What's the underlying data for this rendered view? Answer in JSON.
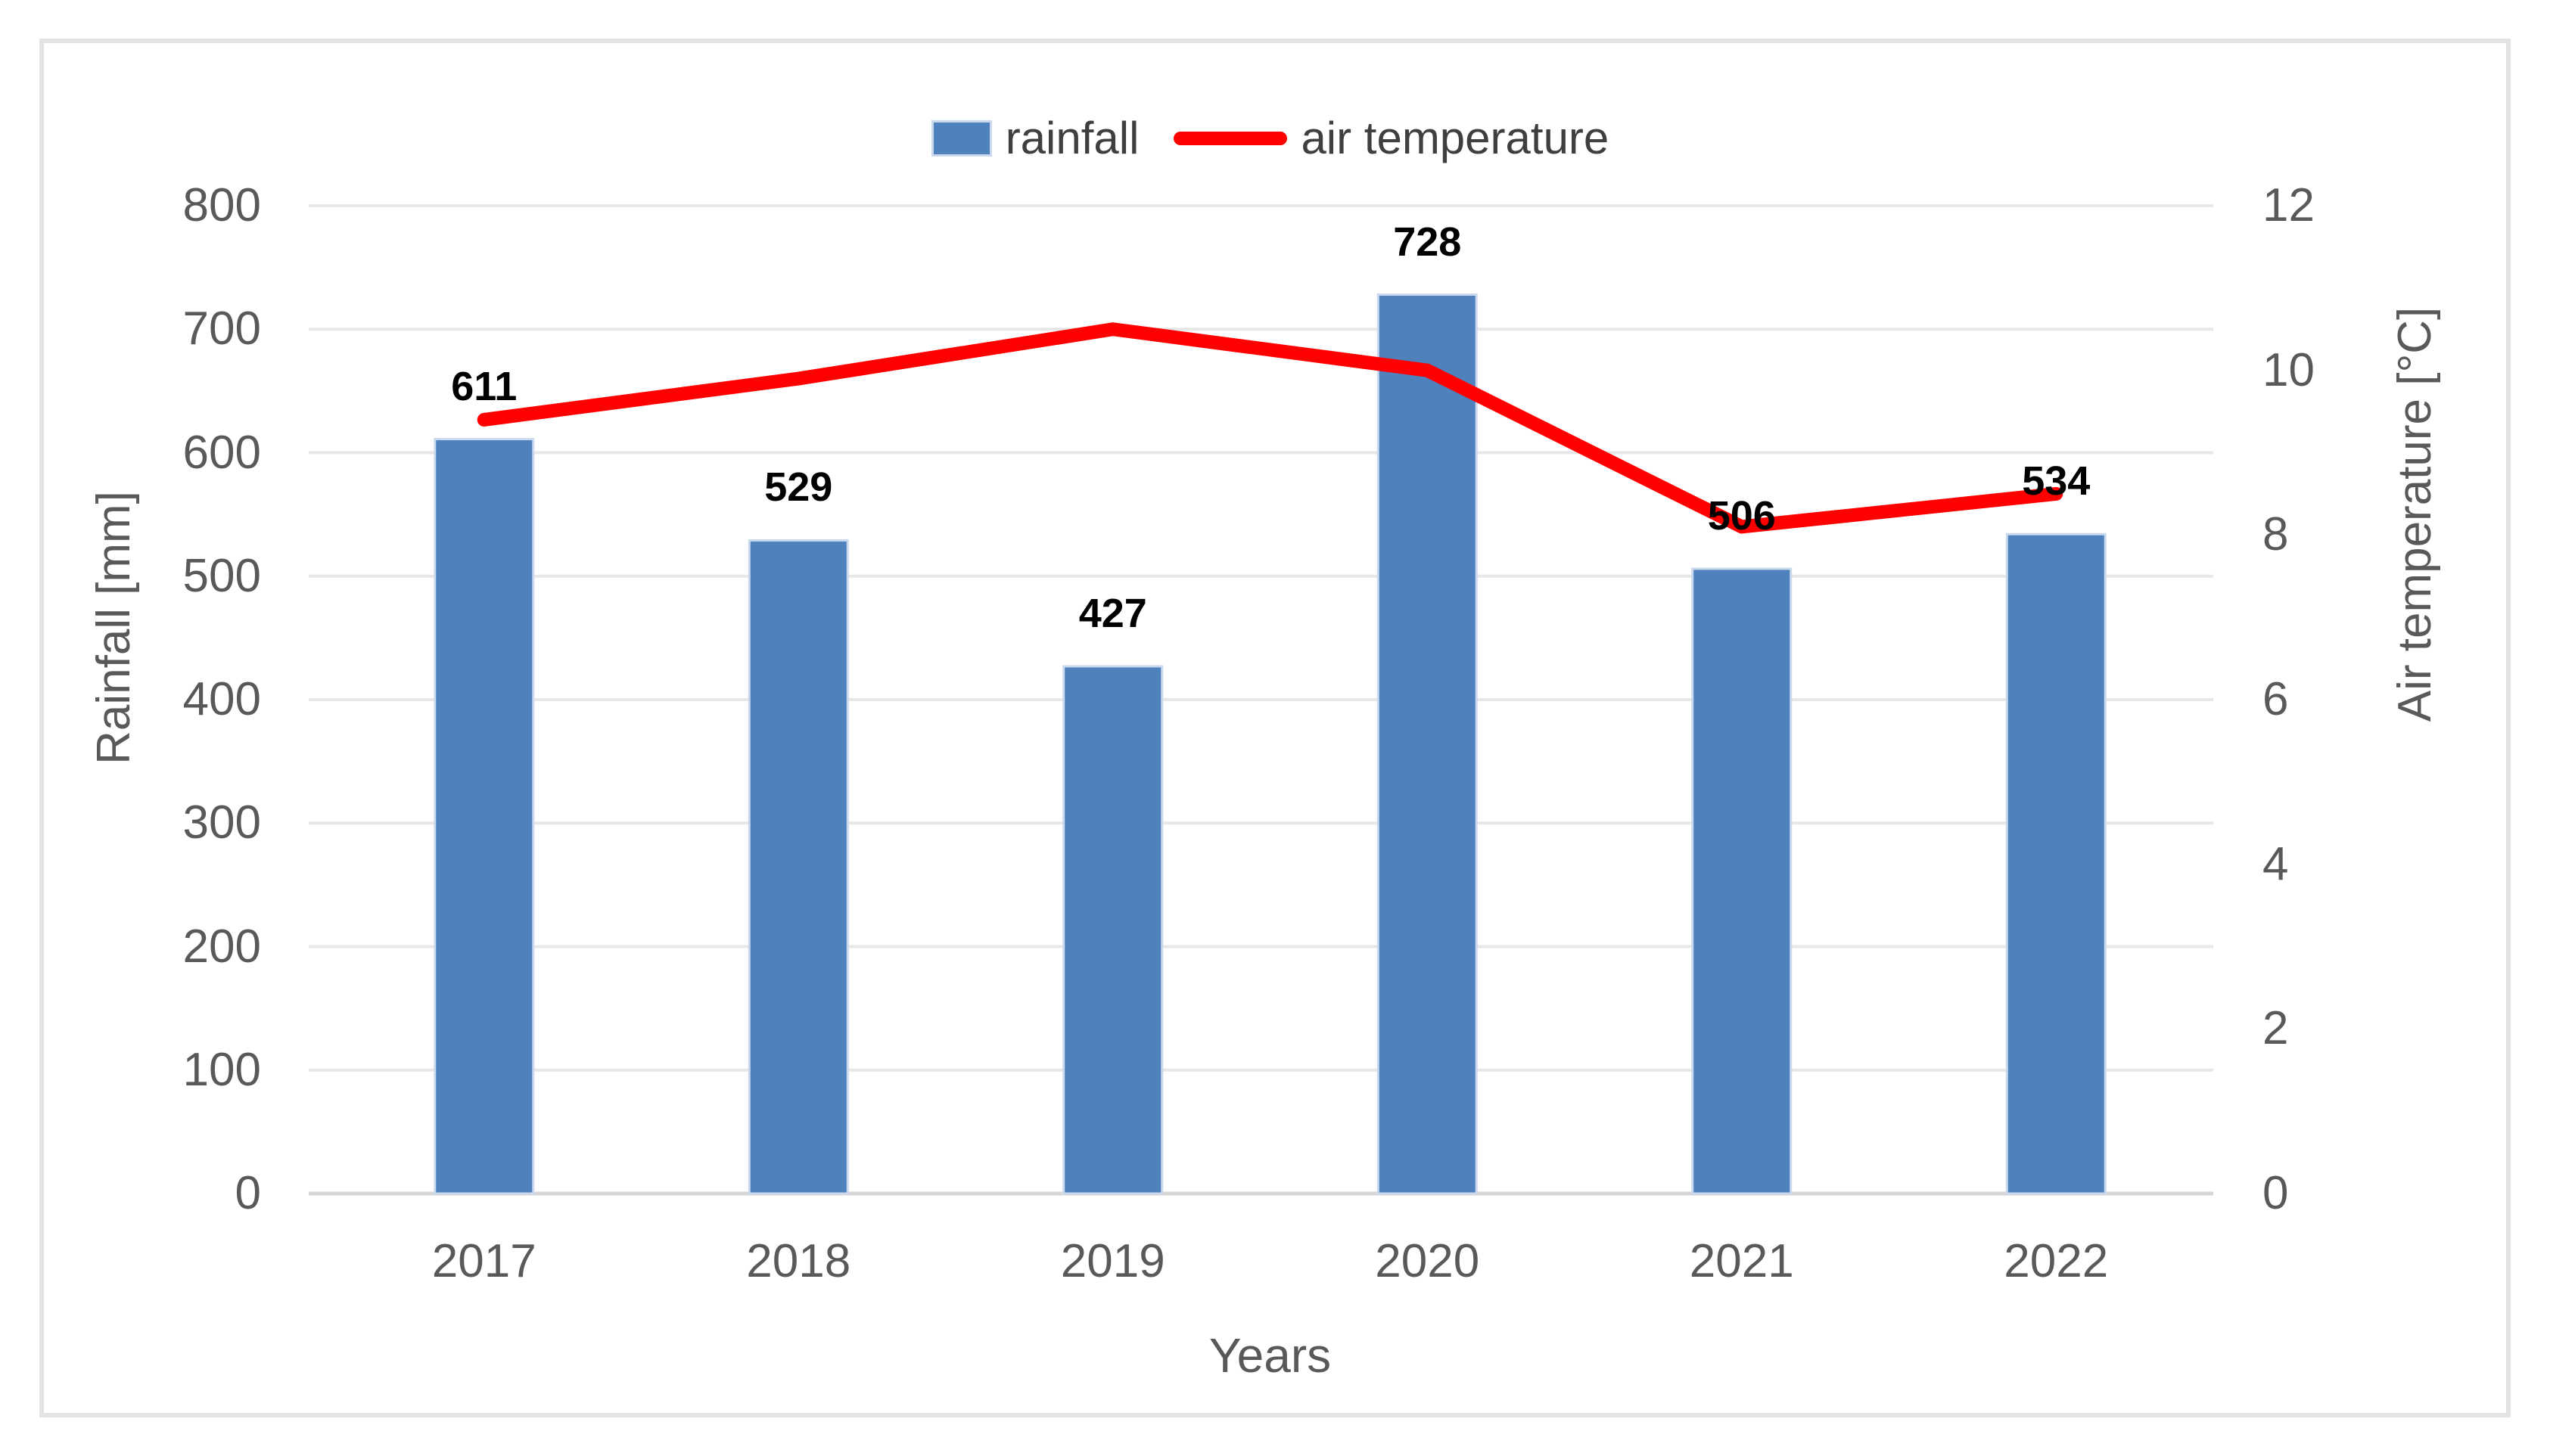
{
  "chart_data": {
    "type": "bar",
    "subtype": "combo-bar-line-dual-axis",
    "categories": [
      "2017",
      "2018",
      "2019",
      "2020",
      "2021",
      "2022"
    ],
    "series": [
      {
        "name": "rainfall",
        "type": "bar",
        "axis": "left",
        "values": [
          611,
          529,
          427,
          728,
          506,
          534
        ],
        "data_labels": [
          611,
          529,
          427,
          728,
          506,
          534
        ],
        "color": "#4F81BD"
      },
      {
        "name": "air temperature",
        "type": "line",
        "axis": "right",
        "values": [
          9.4,
          9.9,
          10.5,
          10.0,
          8.1,
          8.5
        ],
        "color": "#FF0000"
      }
    ],
    "title": "",
    "xlabel": "Years",
    "ylabel_left": "Rainfall [mm]",
    "ylabel_right": "Air temperature [°C]",
    "ylim_left": [
      0,
      800
    ],
    "ytick_step_left": 100,
    "yticks_left": [
      0,
      100,
      200,
      300,
      400,
      500,
      600,
      700,
      800
    ],
    "ylim_right": [
      0,
      12
    ],
    "ytick_step_right": 2,
    "yticks_right": [
      0,
      2,
      4,
      6,
      8,
      10,
      12
    ],
    "grid": true,
    "legend_position": "top"
  },
  "colors": {
    "bar_fill": "#4F81BD",
    "bar_edge": "#cbd9ee",
    "line": "#FF0000",
    "gridline": "#e7e7e7",
    "axis_line": "#d6d6d6",
    "tick_text": "#595959",
    "data_label_text": "#000000",
    "frame_border": "#e3e3e3"
  }
}
